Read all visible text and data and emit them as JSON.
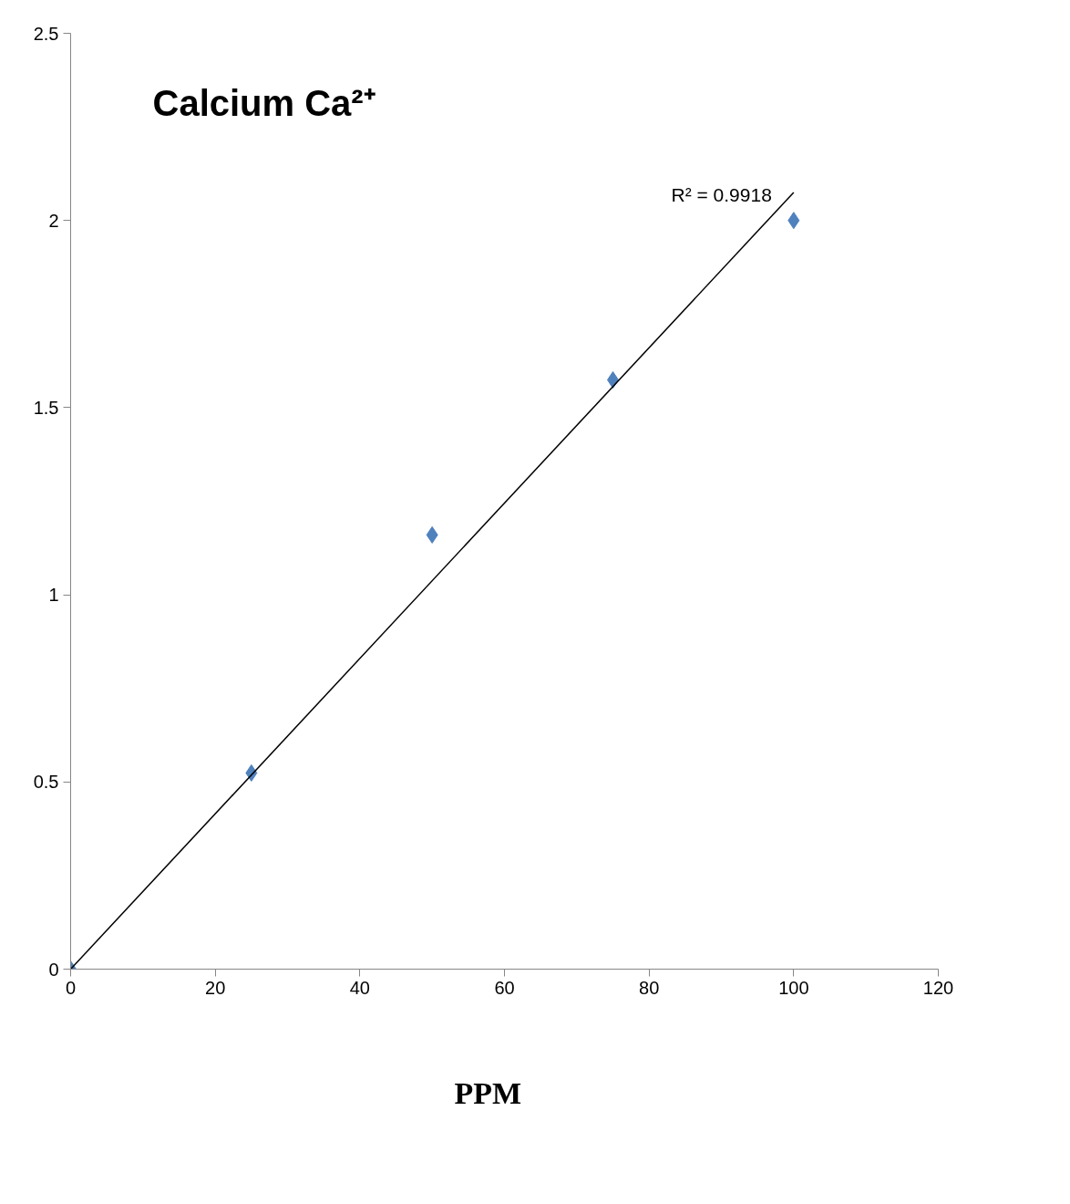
{
  "chart_data": {
    "type": "scatter",
    "title": "Calcium Ca²⁺",
    "x": [
      0,
      25,
      50,
      75,
      100
    ],
    "series": [
      {
        "color": "#4f81bd",
        "marker": "diamond",
        "values": [
          0,
          0.524,
          1.16,
          1.574,
          2.0
        ]
      },
      {
        "type": "line",
        "color": "#000000",
        "marker": "none",
        "line_style": "solid",
        "x": [
          0,
          100
        ],
        "values": [
          0,
          2.075
        ]
      }
    ],
    "annotations": [
      {
        "text": "R² = 0.9918",
        "x": 100,
        "y": 2.075
      },
      "PPM"
    ],
    "xlim": [
      0,
      120
    ],
    "xticks": [
      0,
      20,
      40,
      60,
      80,
      100,
      120
    ],
    "ylim": [
      0,
      2.5
    ],
    "yticks": [
      0,
      0.5,
      1,
      1.5,
      2,
      2.5
    ],
    "grid": false
  }
}
